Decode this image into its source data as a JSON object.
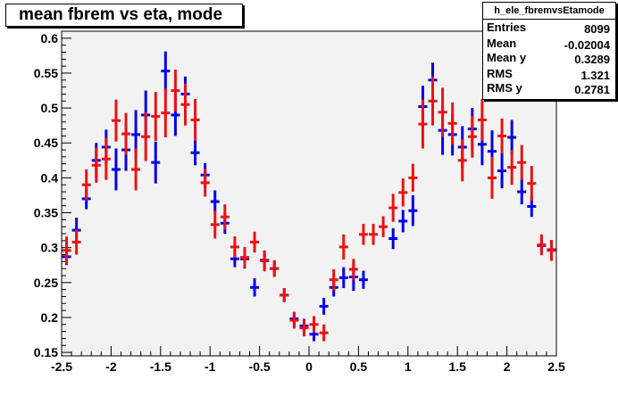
{
  "title": "mean fbrem vs eta, mode",
  "stats": {
    "name": "h_ele_fbremvsEtamode",
    "rows": [
      {
        "key": "Entries",
        "value": "8099"
      },
      {
        "key": "Mean",
        "value": "-0.02004"
      },
      {
        "key": "Mean y",
        "value": "0.3289"
      },
      {
        "key": "RMS",
        "value": "1.321"
      },
      {
        "key": "RMS y",
        "value": "0.2781"
      }
    ]
  },
  "colors": {
    "frame_fill": "#f2f2f2",
    "blue": "#0000ee",
    "red": "#ee1111"
  },
  "chart_data": {
    "type": "scatter",
    "title": "mean fbrem vs eta, mode",
    "xlim": [
      -2.5,
      2.5
    ],
    "ylim": [
      0.145,
      0.61
    ],
    "xticks": [
      "-2.5",
      "-2",
      "-1.5",
      "-1",
      "-0.5",
      "0",
      "0.5",
      "1",
      "1.5",
      "2",
      "2.5"
    ],
    "yticks": [
      "0.15",
      "0.2",
      "0.25",
      "0.3",
      "0.35",
      "0.4",
      "0.45",
      "0.5",
      "0.55",
      "0.6"
    ],
    "grid": false,
    "series": [
      {
        "color": "blue",
        "points": [
          {
            "x": -2.45,
            "y": 0.287,
            "e": 0.012
          },
          {
            "x": -2.35,
            "y": 0.325,
            "e": 0.018
          },
          {
            "x": -2.25,
            "y": 0.37,
            "e": 0.015
          },
          {
            "x": -2.15,
            "y": 0.425,
            "e": 0.025
          },
          {
            "x": -2.05,
            "y": 0.444,
            "e": 0.025
          },
          {
            "x": -1.95,
            "y": 0.412,
            "e": 0.03
          },
          {
            "x": -1.85,
            "y": 0.44,
            "e": 0.03
          },
          {
            "x": -1.75,
            "y": 0.462,
            "e": 0.035
          },
          {
            "x": -1.65,
            "y": 0.49,
            "e": 0.035
          },
          {
            "x": -1.55,
            "y": 0.422,
            "e": 0.03
          },
          {
            "x": -1.45,
            "y": 0.553,
            "e": 0.028
          },
          {
            "x": -1.35,
            "y": 0.49,
            "e": 0.03
          },
          {
            "x": -1.25,
            "y": 0.52,
            "e": 0.025
          },
          {
            "x": -1.15,
            "y": 0.436,
            "e": 0.018
          },
          {
            "x": -1.05,
            "y": 0.404,
            "e": 0.017
          },
          {
            "x": -0.95,
            "y": 0.366,
            "e": 0.016
          },
          {
            "x": -0.85,
            "y": 0.335,
            "e": 0.015
          },
          {
            "x": -0.75,
            "y": 0.284,
            "e": 0.012
          },
          {
            "x": -0.65,
            "y": 0.284,
            "e": 0.014
          },
          {
            "x": -0.55,
            "y": 0.243,
            "e": 0.013
          },
          {
            "x": -0.45,
            "y": 0.282,
            "e": 0.013
          },
          {
            "x": -0.35,
            "y": 0.27,
            "e": 0.011
          },
          {
            "x": -0.25,
            "y": 0.232,
            "e": 0.01
          },
          {
            "x": -0.15,
            "y": 0.198,
            "e": 0.01
          },
          {
            "x": -0.05,
            "y": 0.188,
            "e": 0.01
          },
          {
            "x": 0.05,
            "y": 0.176,
            "e": 0.01
          },
          {
            "x": 0.15,
            "y": 0.216,
            "e": 0.012
          },
          {
            "x": 0.25,
            "y": 0.243,
            "e": 0.013
          },
          {
            "x": 0.35,
            "y": 0.257,
            "e": 0.015
          },
          {
            "x": 0.45,
            "y": 0.258,
            "e": 0.02
          },
          {
            "x": 0.55,
            "y": 0.254,
            "e": 0.013
          },
          {
            "x": 0.85,
            "y": 0.313,
            "e": 0.015
          },
          {
            "x": 0.95,
            "y": 0.338,
            "e": 0.016
          },
          {
            "x": 1.05,
            "y": 0.353,
            "e": 0.022
          },
          {
            "x": 1.15,
            "y": 0.502,
            "e": 0.03
          },
          {
            "x": 1.25,
            "y": 0.54,
            "e": 0.025
          },
          {
            "x": 1.35,
            "y": 0.468,
            "e": 0.035
          },
          {
            "x": 1.45,
            "y": 0.462,
            "e": 0.03
          },
          {
            "x": 1.55,
            "y": 0.444,
            "e": 0.03
          },
          {
            "x": 1.65,
            "y": 0.47,
            "e": 0.03
          },
          {
            "x": 1.75,
            "y": 0.448,
            "e": 0.03
          },
          {
            "x": 1.85,
            "y": 0.438,
            "e": 0.03
          },
          {
            "x": 1.95,
            "y": 0.41,
            "e": 0.025
          },
          {
            "x": 2.05,
            "y": 0.458,
            "e": 0.025
          },
          {
            "x": 2.15,
            "y": 0.38,
            "e": 0.018
          },
          {
            "x": 2.25,
            "y": 0.359,
            "e": 0.015
          },
          {
            "x": 2.35,
            "y": 0.303,
            "e": 0.012
          },
          {
            "x": 2.45,
            "y": 0.297,
            "e": 0.012
          }
        ]
      },
      {
        "color": "red",
        "points": [
          {
            "x": -2.45,
            "y": 0.296,
            "e": 0.02
          },
          {
            "x": -2.35,
            "y": 0.308,
            "e": 0.018
          },
          {
            "x": -2.25,
            "y": 0.39,
            "e": 0.022
          },
          {
            "x": -2.15,
            "y": 0.418,
            "e": 0.025
          },
          {
            "x": -2.05,
            "y": 0.427,
            "e": 0.03
          },
          {
            "x": -1.95,
            "y": 0.482,
            "e": 0.03
          },
          {
            "x": -1.85,
            "y": 0.463,
            "e": 0.03
          },
          {
            "x": -1.75,
            "y": 0.412,
            "e": 0.03
          },
          {
            "x": -1.65,
            "y": 0.459,
            "e": 0.035
          },
          {
            "x": -1.55,
            "y": 0.488,
            "e": 0.035
          },
          {
            "x": -1.45,
            "y": 0.493,
            "e": 0.035
          },
          {
            "x": -1.35,
            "y": 0.525,
            "e": 0.03
          },
          {
            "x": -1.25,
            "y": 0.505,
            "e": 0.03
          },
          {
            "x": -1.15,
            "y": 0.483,
            "e": 0.03
          },
          {
            "x": -1.05,
            "y": 0.393,
            "e": 0.02
          },
          {
            "x": -0.95,
            "y": 0.333,
            "e": 0.02
          },
          {
            "x": -0.85,
            "y": 0.344,
            "e": 0.018
          },
          {
            "x": -0.75,
            "y": 0.301,
            "e": 0.015
          },
          {
            "x": -0.65,
            "y": 0.286,
            "e": 0.015
          },
          {
            "x": -0.55,
            "y": 0.308,
            "e": 0.015
          },
          {
            "x": -0.45,
            "y": 0.281,
            "e": 0.015
          },
          {
            "x": -0.35,
            "y": 0.27,
            "e": 0.012
          },
          {
            "x": -0.25,
            "y": 0.232,
            "e": 0.01
          },
          {
            "x": -0.15,
            "y": 0.196,
            "e": 0.012
          },
          {
            "x": -0.05,
            "y": 0.185,
            "e": 0.012
          },
          {
            "x": 0.05,
            "y": 0.19,
            "e": 0.012
          },
          {
            "x": 0.15,
            "y": 0.178,
            "e": 0.012
          },
          {
            "x": 0.25,
            "y": 0.254,
            "e": 0.015
          },
          {
            "x": 0.35,
            "y": 0.301,
            "e": 0.018
          },
          {
            "x": 0.45,
            "y": 0.269,
            "e": 0.015
          },
          {
            "x": 0.55,
            "y": 0.319,
            "e": 0.015
          },
          {
            "x": 0.65,
            "y": 0.319,
            "e": 0.015
          },
          {
            "x": 0.75,
            "y": 0.33,
            "e": 0.015
          },
          {
            "x": 0.85,
            "y": 0.357,
            "e": 0.02
          },
          {
            "x": 0.95,
            "y": 0.379,
            "e": 0.02
          },
          {
            "x": 1.05,
            "y": 0.4,
            "e": 0.02
          },
          {
            "x": 1.15,
            "y": 0.477,
            "e": 0.035
          },
          {
            "x": 1.25,
            "y": 0.51,
            "e": 0.035
          },
          {
            "x": 1.35,
            "y": 0.494,
            "e": 0.035
          },
          {
            "x": 1.45,
            "y": 0.478,
            "e": 0.03
          },
          {
            "x": 1.55,
            "y": 0.425,
            "e": 0.03
          },
          {
            "x": 1.65,
            "y": 0.459,
            "e": 0.03
          },
          {
            "x": 1.75,
            "y": 0.483,
            "e": 0.03
          },
          {
            "x": 1.85,
            "y": 0.4,
            "e": 0.03
          },
          {
            "x": 1.95,
            "y": 0.46,
            "e": 0.025
          },
          {
            "x": 2.05,
            "y": 0.415,
            "e": 0.025
          },
          {
            "x": 2.15,
            "y": 0.422,
            "e": 0.025
          },
          {
            "x": 2.25,
            "y": 0.392,
            "e": 0.025
          },
          {
            "x": 2.35,
            "y": 0.304,
            "e": 0.015
          },
          {
            "x": 2.45,
            "y": 0.296,
            "e": 0.015
          }
        ]
      }
    ]
  }
}
